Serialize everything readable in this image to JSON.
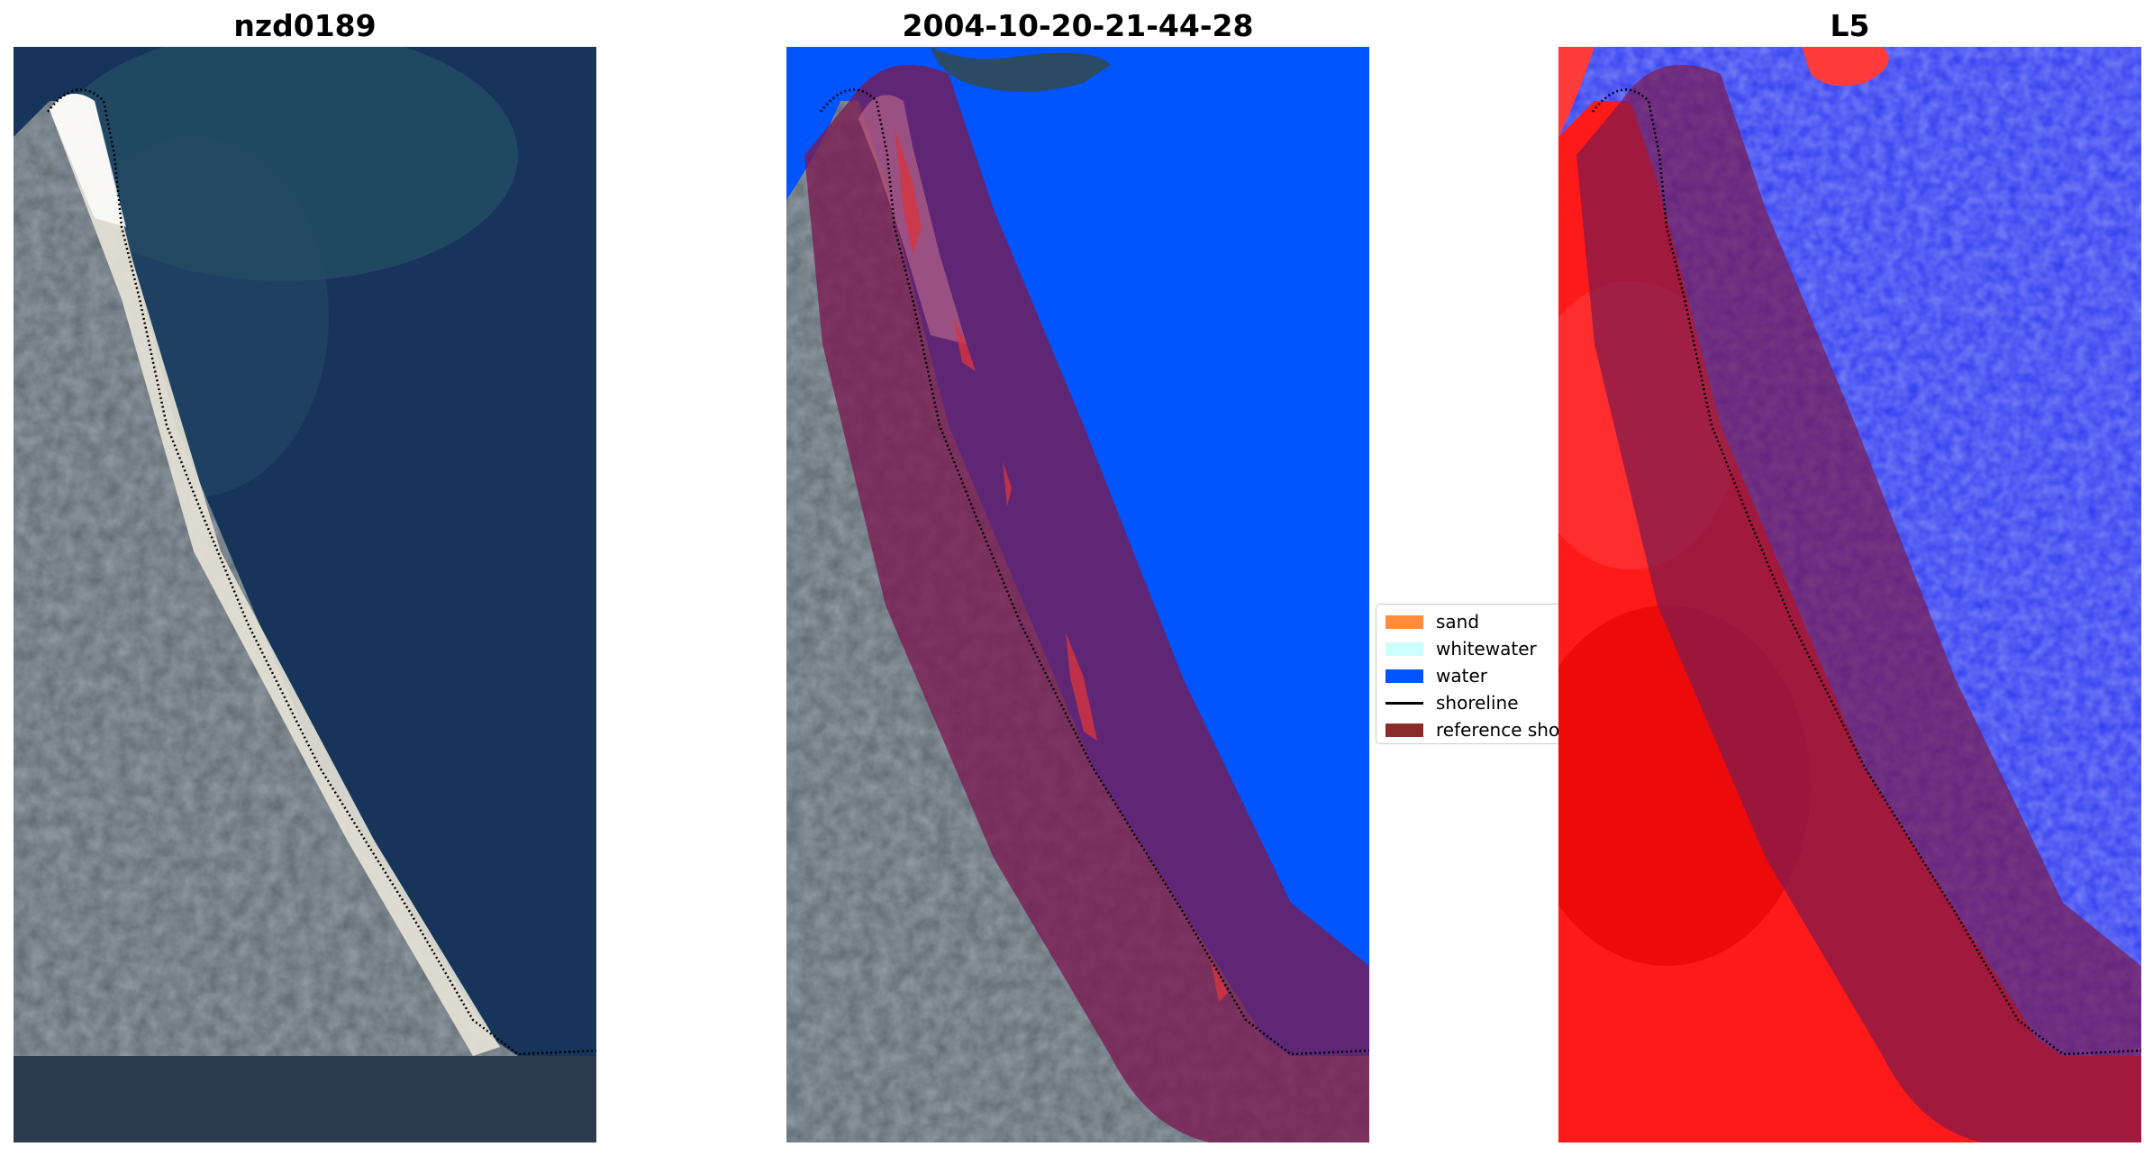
{
  "panels": [
    {
      "title": "nzd0189",
      "kind": "rgb"
    },
    {
      "title": "2004-10-20-21-44-28",
      "kind": "classified"
    },
    {
      "title": "L5",
      "kind": "index"
    }
  ],
  "legend": {
    "items": [
      {
        "label": "sand",
        "color": "#ff8c3a",
        "kind": "patch"
      },
      {
        "label": "whitewater",
        "color": "#ccffff",
        "kind": "patch"
      },
      {
        "label": "water",
        "color": "#0055ff",
        "kind": "patch"
      },
      {
        "label": "shoreline",
        "color": "#000000",
        "kind": "line"
      },
      {
        "label": "reference shoreline buffer",
        "color": "#8b2c2c",
        "kind": "patch"
      }
    ]
  },
  "colors": {
    "land": "#5f6a72",
    "sea_rgb": "#17345a",
    "beach": "#e8e4d8",
    "water_class": "#0055ff",
    "buffer_overlay": "#7b1a4f",
    "index_land": "#ff1a1a",
    "index_water": "#2a36f0"
  }
}
